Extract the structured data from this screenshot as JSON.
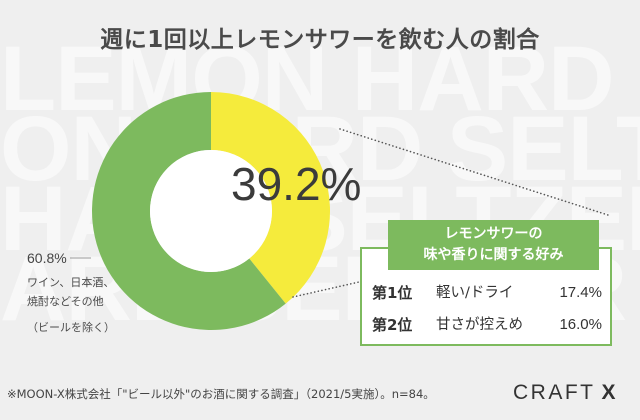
{
  "colors": {
    "background": "#efefef",
    "watermark_text": "#f8f8f8",
    "title_text": "#4a4a4a",
    "body_text": "#3b3b3b",
    "accent_green": "#7dba5e",
    "donut_hole": "#ffffff",
    "leader_line": "#555555"
  },
  "watermark": {
    "rows": [
      "LEMON HARD",
      "ON HARD SELTZ",
      "HARD SELTZER",
      "ARD SELTZER"
    ]
  },
  "chart_data": {
    "type": "pie",
    "donut": true,
    "title": "週に1回以上レモンサワーを飲む人の割合",
    "slices": [
      {
        "value": 39.2,
        "value_label": "39.2%",
        "color": "#f5eb3c"
      },
      {
        "value": 60.8,
        "value_label": "60.8%",
        "label_lines": [
          "ワイン、日本酒、",
          "焼酎などその他",
          "（ビールを除く）"
        ],
        "color": "#7dba5e"
      }
    ],
    "callout": {
      "header_lines": [
        "レモンサワーの",
        "味や香りに関する好み"
      ],
      "rows": [
        {
          "rank": "第1位",
          "label": "軽い/ドライ",
          "value_label": "17.4%"
        },
        {
          "rank": "第2位",
          "label": "甘さが控えめ",
          "value_label": "16.0%"
        }
      ]
    },
    "source": "※MOON-X株式会社「\"ビール以外\"のお酒に関する調査」（2021/5実施）。n=84。"
  },
  "brand": {
    "logo_main": "CRAFT",
    "logo_mark": "X"
  }
}
